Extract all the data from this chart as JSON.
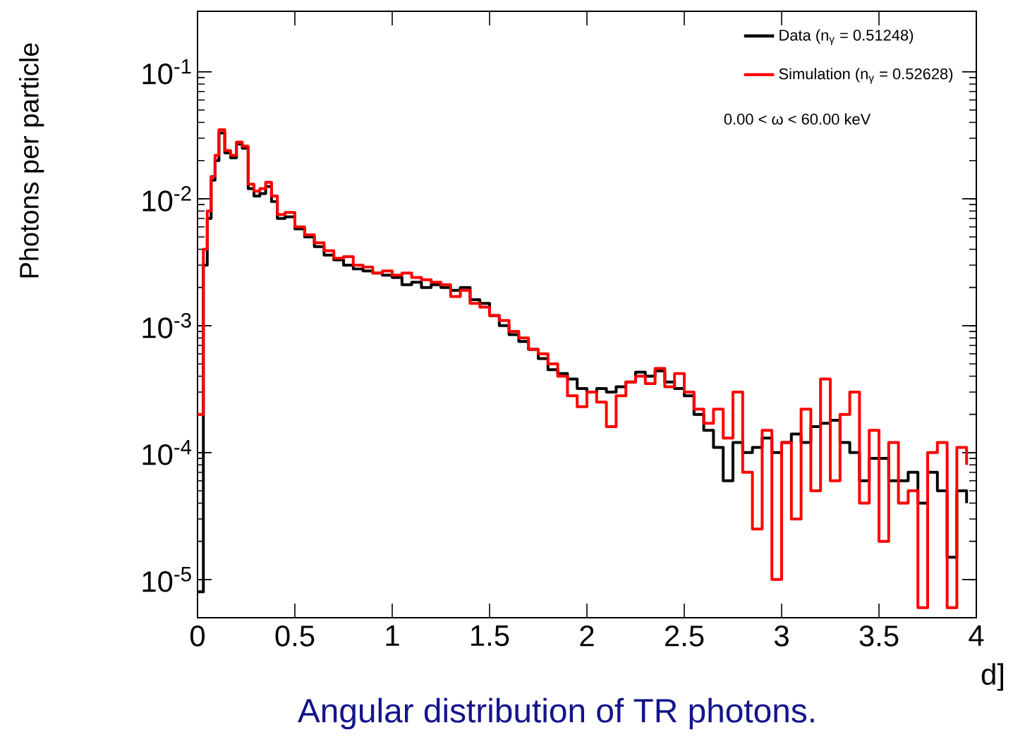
{
  "chart_data": {
    "type": "step",
    "title": "Angular distribution of TR photons.",
    "xlabel": "d]",
    "ylabel": "Photons per particle",
    "annotations": [
      "0.00 < ω < 60.00 keV"
    ],
    "log": "y",
    "legend": "top right",
    "marker": "none",
    "line_style": "solid",
    "xlim": [
      0,
      4
    ],
    "ylim": [
      5e-06,
      0.3
    ],
    "xticks": [
      0,
      0.5,
      1,
      1.5,
      2,
      2.5,
      3,
      3.5,
      4
    ],
    "yticks": [
      {
        "value": 1e-05,
        "label": "10$^{-5}$"
      },
      {
        "value": 0.0001,
        "label": "10$^{-4}$"
      },
      {
        "value": 0.001,
        "label": "10$^{-3}$"
      },
      {
        "value": 0.01,
        "label": "10$^{-2}$"
      },
      {
        "value": 0.1,
        "label": "10$^{-1}$"
      }
    ],
    "x": [
      0.0,
      0.03,
      0.05,
      0.07,
      0.09,
      0.11,
      0.14,
      0.17,
      0.2,
      0.23,
      0.26,
      0.29,
      0.32,
      0.35,
      0.38,
      0.41,
      0.45,
      0.5,
      0.55,
      0.6,
      0.65,
      0.7,
      0.75,
      0.8,
      0.85,
      0.9,
      0.95,
      1.0,
      1.05,
      1.1,
      1.15,
      1.2,
      1.25,
      1.3,
      1.35,
      1.4,
      1.45,
      1.5,
      1.55,
      1.6,
      1.65,
      1.7,
      1.75,
      1.8,
      1.85,
      1.9,
      1.95,
      2.0,
      2.05,
      2.1,
      2.15,
      2.2,
      2.25,
      2.3,
      2.35,
      2.4,
      2.45,
      2.5,
      2.55,
      2.6,
      2.65,
      2.7,
      2.75,
      2.8,
      2.85,
      2.9,
      2.95,
      3.0,
      3.05,
      3.1,
      3.15,
      3.2,
      3.25,
      3.3,
      3.35,
      3.4,
      3.45,
      3.5,
      3.55,
      3.6,
      3.65,
      3.7,
      3.75,
      3.8,
      3.85,
      3.9,
      3.95
    ],
    "series": [
      {
        "name": "Data          (n$_{γ}$ = 0.51248)",
        "color": "#000000",
        "values": [
          8e-06,
          0.003,
          0.007,
          0.014,
          0.02,
          0.033,
          0.023,
          0.021,
          0.027,
          0.025,
          0.012,
          0.0105,
          0.011,
          0.0125,
          0.0095,
          0.007,
          0.0072,
          0.0058,
          0.005,
          0.0042,
          0.0036,
          0.0033,
          0.003,
          0.0028,
          0.0027,
          0.0026,
          0.0025,
          0.0024,
          0.0021,
          0.0022,
          0.002,
          0.0021,
          0.002,
          0.0019,
          0.002,
          0.0016,
          0.0015,
          0.0012,
          0.001,
          0.00085,
          0.00075,
          0.00065,
          0.00055,
          0.00045,
          0.00042,
          0.00038,
          0.00032,
          0.0003,
          0.00032,
          0.0003,
          0.00033,
          0.00036,
          0.00043,
          0.0004,
          0.00044,
          0.00036,
          0.00032,
          0.00028,
          0.0002,
          0.00015,
          0.00011,
          6e-05,
          0.00012,
          0.0001,
          0.00011,
          0.00013,
          0.0001,
          0.00012,
          0.00014,
          0.00012,
          0.00016,
          0.00017,
          0.00018,
          0.00012,
          0.0001,
          6e-05,
          9e-05,
          9e-05,
          6e-05,
          6e-05,
          7e-05,
          4e-05,
          7e-05,
          5e-05,
          1.5e-05,
          5e-05,
          4e-05
        ]
      },
      {
        "name": "Simulation (n$_{γ}$ = 0.52628)",
        "color": "#ff0000",
        "values": [
          0.0002,
          0.004,
          0.008,
          0.015,
          0.022,
          0.035,
          0.024,
          0.022,
          0.028,
          0.026,
          0.013,
          0.0115,
          0.012,
          0.0135,
          0.0105,
          0.0075,
          0.0078,
          0.006,
          0.0052,
          0.0045,
          0.0039,
          0.0034,
          0.0035,
          0.003,
          0.0029,
          0.0026,
          0.0027,
          0.0025,
          0.0026,
          0.0024,
          0.0023,
          0.0022,
          0.0021,
          0.0017,
          0.0019,
          0.0015,
          0.0014,
          0.0012,
          0.0011,
          0.0009,
          0.0008,
          0.00065,
          0.0006,
          0.0005,
          0.0004,
          0.00028,
          0.00023,
          0.0003,
          0.00025,
          0.00016,
          0.00028,
          0.00036,
          0.0004,
          0.00035,
          0.00046,
          0.00033,
          0.00042,
          0.0003,
          0.00022,
          0.00017,
          0.00022,
          0.00013,
          0.0003,
          7e-05,
          2.5e-05,
          0.00015,
          1e-05,
          0.00012,
          3e-05,
          0.00022,
          5e-05,
          0.00038,
          6e-05,
          0.0002,
          0.0003,
          4e-05,
          0.00015,
          2e-05,
          0.00012,
          4e-05,
          5e-05,
          6e-06,
          0.0001,
          0.00012,
          6e-06,
          0.00011,
          8e-05
        ]
      }
    ]
  }
}
